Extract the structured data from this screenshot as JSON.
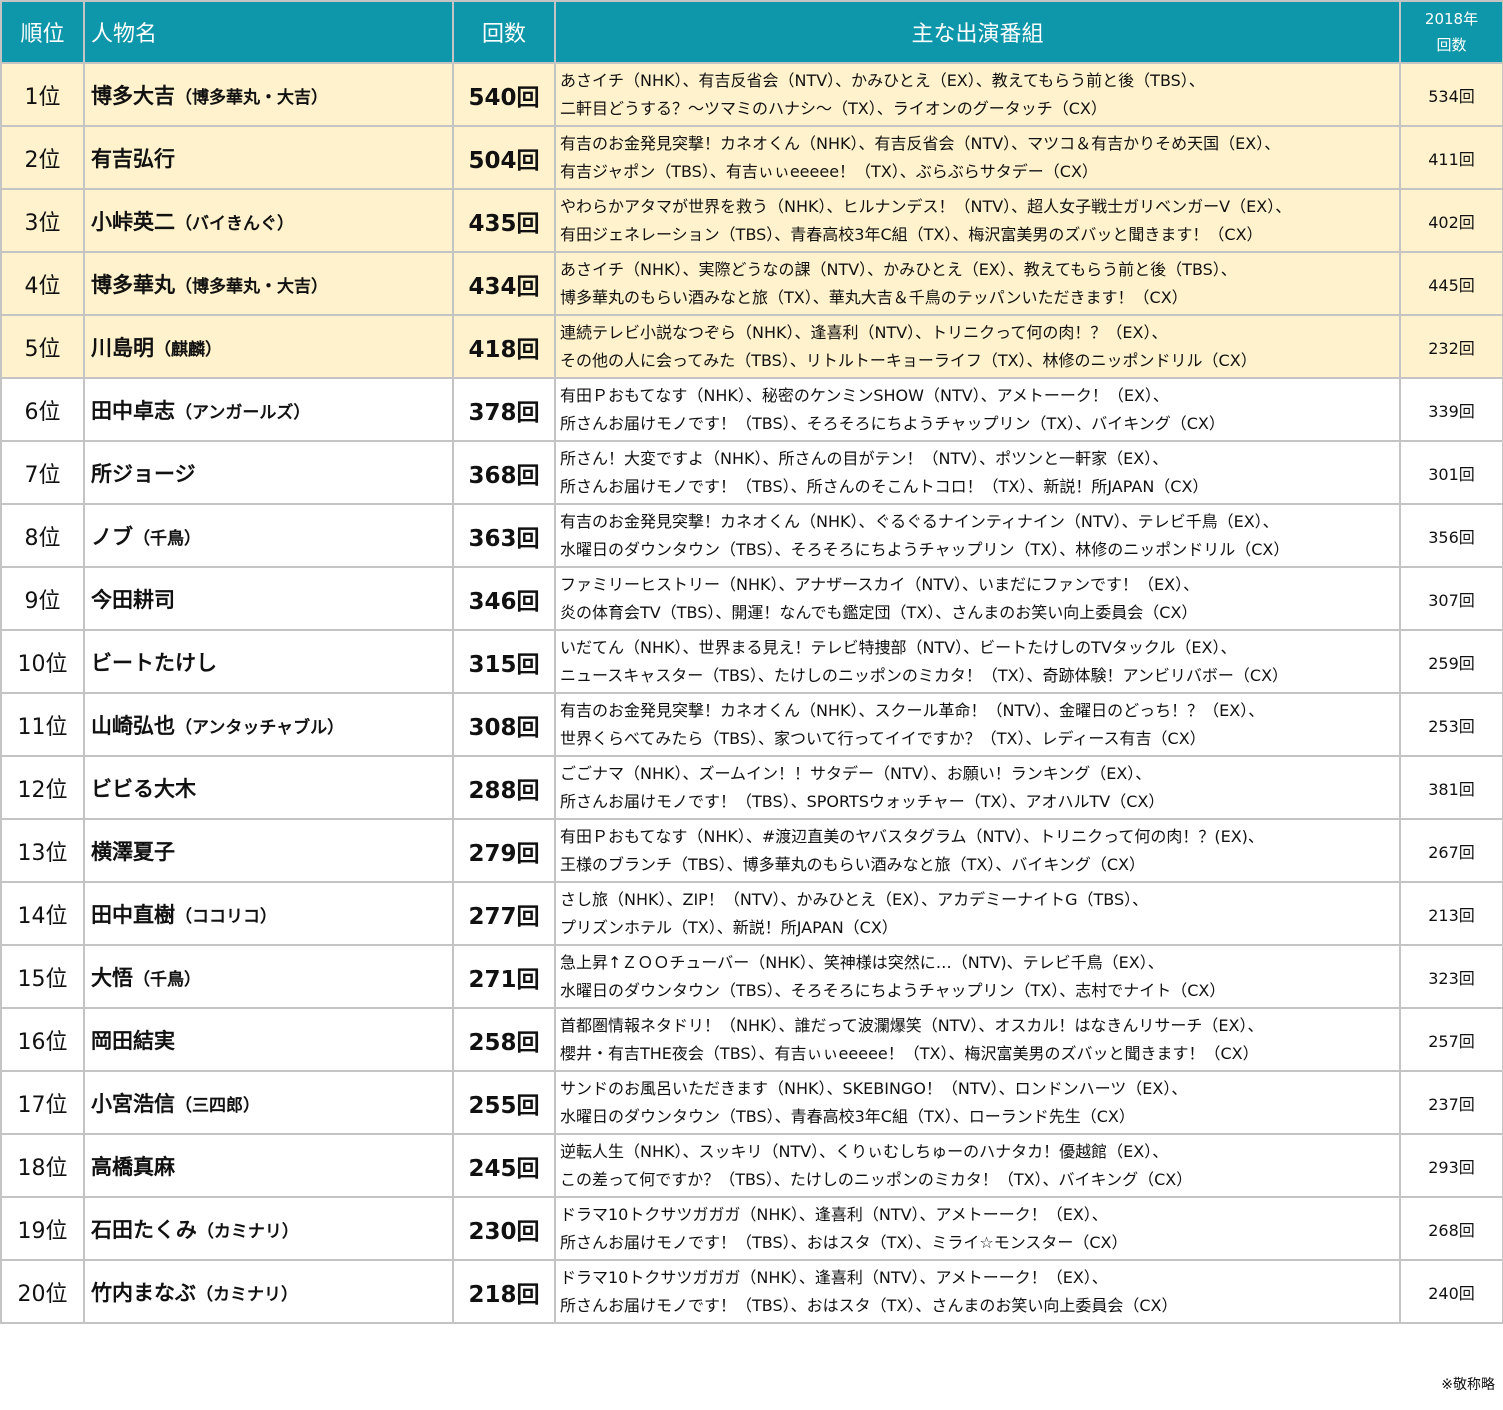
{
  "header": {
    "rank": "順位",
    "name": "人物名",
    "count": "回数",
    "programs": "主な出演番組",
    "prev_line1": "2018年",
    "prev_line2": "回数"
  },
  "rows": [
    {
      "rank": "1位",
      "name": "博多大吉",
      "sub": "（博多華丸・大吉）",
      "count": "540回",
      "p1": "あさイチ（NHK）、有吉反省会（NTV）、かみひとえ（EX）、教えてもらう前と後（TBS）、",
      "p2": "二軒目どうする？～ツマミのハナシ～（TX）、ライオンのグータッチ（CX）",
      "prev": "534回",
      "hl": true
    },
    {
      "rank": "2位",
      "name": "有吉弘行",
      "sub": "",
      "count": "504回",
      "p1": "有吉のお金発見突撃！カネオくん（NHK）、有吉反省会（NTV）、マツコ＆有吉かりそめ天国（EX）、",
      "p2": "有吉ジャポン（TBS）、有吉ぃぃeeeee！（TX）、ぶらぶらサタデー（CX）",
      "prev": "411回",
      "hl": true
    },
    {
      "rank": "3位",
      "name": "小峠英二",
      "sub": "（バイきんぐ）",
      "count": "435回",
      "p1": "やわらかアタマが世界を救う（NHK）、ヒルナンデス！（NTV）、超人女子戦士ガリベンガーV（EX）、",
      "p2": "有田ジェネレーション（TBS）、青春高校3年C組（TX）、梅沢富美男のズバッと聞きます！（CX）",
      "prev": "402回",
      "hl": true
    },
    {
      "rank": "4位",
      "name": "博多華丸",
      "sub": "（博多華丸・大吉）",
      "count": "434回",
      "p1": "あさイチ（NHK）、実際どうなの課（NTV）、かみひとえ（EX）、教えてもらう前と後（TBS）、",
      "p2": "博多華丸のもらい酒みなと旅（TX）、華丸大吉＆千鳥のテッパンいただきます！（CX）",
      "prev": "445回",
      "hl": true
    },
    {
      "rank": "5位",
      "name": "川島明",
      "sub": "（麒麟）",
      "count": "418回",
      "p1": "連続テレビ小説なつぞら（NHK）、逢喜利（NTV）、トリニクって何の肉！？（EX）、",
      "p2": "その他の人に会ってみた（TBS）、リトルトーキョーライフ（TX）、林修のニッポンドリル（CX）",
      "prev": "232回",
      "hl": true
    },
    {
      "rank": "6位",
      "name": "田中卓志",
      "sub": "（アンガールズ）",
      "count": "378回",
      "p1": "有田Ｐおもてなす（NHK）、秘密のケンミンSHOW（NTV）、アメトーーク！（EX）、",
      "p2": "所さんお届けモノです！（TBS）、そろそろにちようチャップリン（TX）、バイキング（CX）",
      "prev": "339回",
      "hl": false
    },
    {
      "rank": "7位",
      "name": "所ジョージ",
      "sub": "",
      "count": "368回",
      "p1": "所さん！大変ですよ（NHK）、所さんの目がテン！（NTV）、ポツンと一軒家（EX）、",
      "p2": "所さんお届けモノです！（TBS）、所さんのそこんトコロ！（TX）、新説！所JAPAN（CX）",
      "prev": "301回",
      "hl": false
    },
    {
      "rank": "8位",
      "name": "ノブ",
      "sub": "（千鳥）",
      "count": "363回",
      "p1": "有吉のお金発見突撃！カネオくん（NHK）、ぐるぐるナインティナイン（NTV）、テレビ千鳥（EX）、",
      "p2": "水曜日のダウンタウン（TBS）、そろそろにちようチャップリン（TX）、林修のニッポンドリル（CX）",
      "prev": "356回",
      "hl": false
    },
    {
      "rank": "9位",
      "name": "今田耕司",
      "sub": "",
      "count": "346回",
      "p1": "ファミリーヒストリー（NHK）、アナザースカイ（NTV）、いまだにファンです！（EX）、",
      "p2": "炎の体育会TV（TBS）、開運！なんでも鑑定団（TX）、さんまのお笑い向上委員会（CX）",
      "prev": "307回",
      "hl": false
    },
    {
      "rank": "10位",
      "name": "ビートたけし",
      "sub": "",
      "count": "315回",
      "p1": "いだてん（NHK）、世界まる見え！テレビ特捜部（NTV）、ビートたけしのTVタックル（EX）、",
      "p2": "ニュースキャスター（TBS）、たけしのニッポンのミカタ！（TX）、奇跡体験！アンビリバボー（CX）",
      "prev": "259回",
      "hl": false
    },
    {
      "rank": "11位",
      "name": "山崎弘也",
      "sub": "（アンタッチャブル）",
      "count": "308回",
      "p1": "有吉のお金発見突撃！カネオくん（NHK）、スクール革命！（NTV）、金曜日のどっち！？（EX）、",
      "p2": "世界くらべてみたら（TBS）、家ついて行ってイイですか？（TX）、レディース有吉（CX）",
      "prev": "253回",
      "hl": false
    },
    {
      "rank": "12位",
      "name": "ビビる大木",
      "sub": "",
      "count": "288回",
      "p1": "ごごナマ（NHK）、ズームイン！！サタデー（NTV）、お願い！ランキング（EX）、",
      "p2": "所さんお届けモノです！（TBS）、SPORTSウォッチャー（TX）、アオハルTV（CX）",
      "prev": "381回",
      "hl": false
    },
    {
      "rank": "13位",
      "name": "横澤夏子",
      "sub": "",
      "count": "279回",
      "p1": "有田Ｐおもてなす（NHK）、#渡辺直美のヤバスタグラム（NTV）、トリニクって何の肉！？(EX)、",
      "p2": "王様のブランチ（TBS）、博多華丸のもらい酒みなと旅（TX）、バイキング（CX）",
      "prev": "267回",
      "hl": false
    },
    {
      "rank": "14位",
      "name": "田中直樹",
      "sub": "（ココリコ）",
      "count": "277回",
      "p1": "さし旅（NHK）、ZIP！（NTV）、かみひとえ（EX）、アカデミーナイトG（TBS）、",
      "p2": "プリズンホテル（TX）、新説！所JAPAN（CX）",
      "prev": "213回",
      "hl": false
    },
    {
      "rank": "15位",
      "name": "大悟",
      "sub": "（千鳥）",
      "count": "271回",
      "p1": "急上昇↑ＺＯＯチューバー（NHK）、笑神様は突然に…（NTV)、テレビ千鳥（EX）、",
      "p2": "水曜日のダウンタウン（TBS）、そろそろにちようチャップリン（TX）、志村でナイト（CX）",
      "prev": "323回",
      "hl": false
    },
    {
      "rank": "16位",
      "name": "岡田結実",
      "sub": "",
      "count": "258回",
      "p1": "首都圏情報ネタドリ！（NHK）、誰だって波瀾爆笑（NTV）、オスカル！はなきんリサーチ（EX）、",
      "p2": "櫻井・有吉THE夜会（TBS）、有吉ぃぃeeeee！（TX）、梅沢富美男のズバッと聞きます！（CX）",
      "prev": "257回",
      "hl": false
    },
    {
      "rank": "17位",
      "name": "小宮浩信",
      "sub": "（三四郎）",
      "count": "255回",
      "p1": "サンドのお風呂いただきます（NHK）、SKEBINGO！（NTV）、ロンドンハーツ（EX）、",
      "p2": "水曜日のダウンタウン（TBS）、青春高校3年C組（TX）、ローランド先生（CX）",
      "prev": "237回",
      "hl": false
    },
    {
      "rank": "18位",
      "name": "高橋真麻",
      "sub": "",
      "count": "245回",
      "p1": "逆転人生（NHK）、スッキリ（NTV）、くりぃむしちゅーのハナタカ！優越館（EX）、",
      "p2": "この差って何ですか？（TBS）、たけしのニッポンのミカタ！（TX）、バイキング（CX）",
      "prev": "293回",
      "hl": false
    },
    {
      "rank": "19位",
      "name": "石田たくみ",
      "sub": "（カミナリ）",
      "count": "230回",
      "p1": "ドラマ10トクサツガガガ（NHK）、逢喜利（NTV）、アメトーーク！（EX）、",
      "p2": "所さんお届けモノです！（TBS）、おはスタ（TX）、ミライ☆モンスター（CX）",
      "prev": "268回",
      "hl": false
    },
    {
      "rank": "20位",
      "name": "竹内まなぶ",
      "sub": "（カミナリ）",
      "count": "218回",
      "p1": "ドラマ10トクサツガガガ（NHK）、逢喜利（NTV）、アメトーーク！（EX）、",
      "p2": "所さんお届けモノです！（TBS）、おはスタ（TX）、さんまのお笑い向上委員会（CX）",
      "prev": "240回",
      "hl": false
    }
  ],
  "note": "※敬称略",
  "colors": {
    "header": "#0e96aa",
    "highlight": "#fff2cc",
    "border": "#c4c4c4"
  }
}
